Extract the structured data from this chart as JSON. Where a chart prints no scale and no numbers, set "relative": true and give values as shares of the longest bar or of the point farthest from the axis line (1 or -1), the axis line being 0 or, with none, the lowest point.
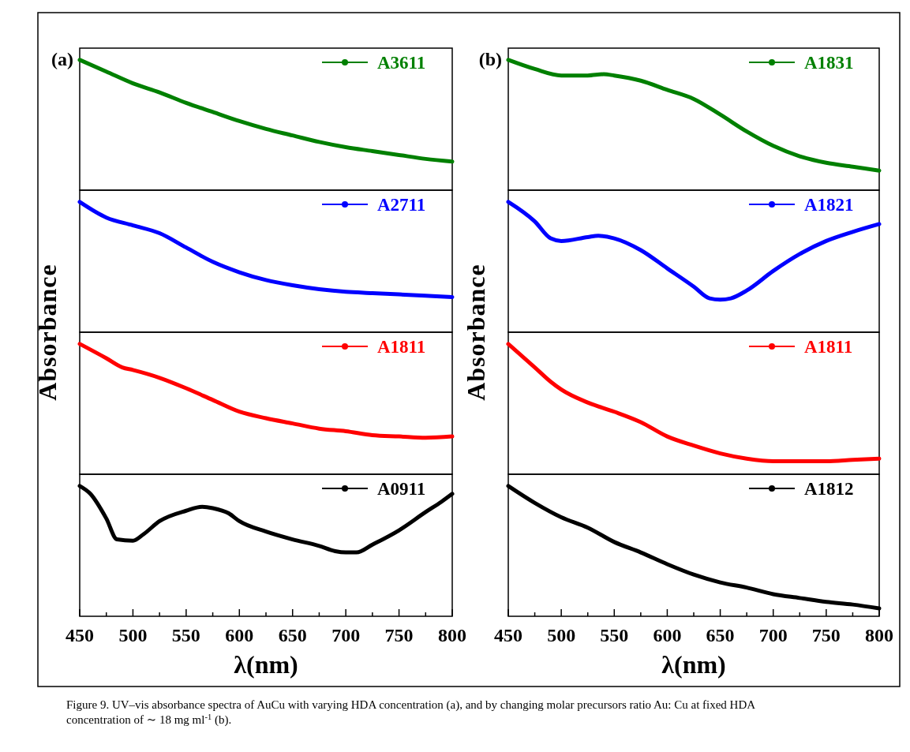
{
  "chart_data": [
    {
      "type": "line",
      "title": "(a)",
      "ylabel": "Absorbance",
      "relative": true,
      "xlim": [
        450,
        800
      ],
      "tick_labels": false,
      "legend": "top right",
      "series": [
        {
          "name": "A3611",
          "color": "#008000",
          "x": [
            450,
            475,
            500,
            525,
            550,
            575,
            600,
            625,
            650,
            675,
            700,
            725,
            750,
            775,
            800
          ],
          "values": [
            1,
            0.91,
            0.82,
            0.75,
            0.67,
            0.6,
            0.53,
            0.47,
            0.42,
            0.37,
            0.33,
            0.3,
            0.27,
            0.24,
            0.22
          ]
        }
      ]
    },
    {
      "type": "line",
      "relative": true,
      "xlim": [
        450,
        800
      ],
      "tick_labels": false,
      "legend": "top right",
      "series": [
        {
          "name": "A2711",
          "color": "#0000ff",
          "x": [
            450,
            475,
            500,
            525,
            550,
            575,
            600,
            625,
            650,
            675,
            700,
            725,
            750,
            775,
            800
          ],
          "values": [
            1,
            0.88,
            0.82,
            0.76,
            0.65,
            0.54,
            0.46,
            0.4,
            0.36,
            0.33,
            0.31,
            0.3,
            0.29,
            0.28,
            0.27
          ]
        }
      ]
    },
    {
      "type": "line",
      "relative": true,
      "xlim": [
        450,
        800
      ],
      "tick_labels": false,
      "legend": "top right",
      "series": [
        {
          "name": "A1811",
          "color": "#ff0000",
          "x": [
            450,
            475,
            490,
            500,
            525,
            550,
            575,
            600,
            625,
            650,
            675,
            700,
            725,
            750,
            775,
            800
          ],
          "values": [
            1,
            0.89,
            0.82,
            0.8,
            0.74,
            0.66,
            0.57,
            0.48,
            0.43,
            0.39,
            0.35,
            0.33,
            0.3,
            0.29,
            0.28,
            0.29
          ]
        }
      ]
    },
    {
      "type": "line",
      "xlabel": "λ(nm)",
      "relative": true,
      "xlim": [
        450,
        800
      ],
      "tick_labels": "x",
      "legend": "top right",
      "xticks": [
        450,
        {
          "value": 475,
          "label": null
        },
        500,
        {
          "value": 525,
          "label": null
        },
        550,
        {
          "value": 575,
          "label": null
        },
        600,
        {
          "value": 625,
          "label": null
        },
        650,
        {
          "value": 675,
          "label": null
        },
        700,
        {
          "value": 725,
          "label": null
        },
        750,
        {
          "value": 775,
          "label": null
        },
        800
      ],
      "series": [
        {
          "name": "A0911",
          "color": "#000000",
          "x": [
            450,
            460,
            475,
            485,
            500,
            510,
            525,
            550,
            565,
            575,
            590,
            600,
            625,
            650,
            675,
            690,
            700,
            710,
            725,
            750,
            775,
            790,
            800
          ],
          "values": [
            1,
            0.94,
            0.75,
            0.59,
            0.58,
            0.63,
            0.73,
            0.81,
            0.84,
            0.83,
            0.79,
            0.73,
            0.65,
            0.59,
            0.54,
            0.5,
            0.49,
            0.49,
            0.55,
            0.66,
            0.8,
            0.88,
            0.94
          ]
        }
      ]
    },
    {
      "type": "line",
      "title": "(b)",
      "ylabel": "Absorbance",
      "relative": true,
      "xlim": [
        450,
        800
      ],
      "tick_labels": false,
      "legend": "top right",
      "series": [
        {
          "name": "A1831",
          "color": "#008000",
          "x": [
            450,
            475,
            500,
            525,
            540,
            550,
            575,
            600,
            625,
            650,
            675,
            700,
            725,
            750,
            775,
            800
          ],
          "values": [
            1,
            0.93,
            0.88,
            0.88,
            0.89,
            0.88,
            0.84,
            0.77,
            0.7,
            0.58,
            0.45,
            0.34,
            0.26,
            0.21,
            0.18,
            0.15
          ]
        }
      ]
    },
    {
      "type": "line",
      "relative": true,
      "xlim": [
        450,
        800
      ],
      "tick_labels": false,
      "legend": "top right",
      "series": [
        {
          "name": "A1821",
          "color": "#0000ff",
          "x": [
            450,
            475,
            490,
            500,
            525,
            535,
            550,
            575,
            600,
            625,
            640,
            650,
            660,
            675,
            700,
            725,
            750,
            775,
            800
          ],
          "values": [
            1,
            0.85,
            0.72,
            0.7,
            0.73,
            0.74,
            0.72,
            0.63,
            0.49,
            0.35,
            0.26,
            0.25,
            0.26,
            0.32,
            0.47,
            0.6,
            0.7,
            0.77,
            0.83
          ]
        }
      ]
    },
    {
      "type": "line",
      "relative": true,
      "xlim": [
        450,
        800
      ],
      "tick_labels": false,
      "legend": "top right",
      "series": [
        {
          "name": "A1811",
          "color": "#ff0000",
          "x": [
            450,
            475,
            490,
            500,
            525,
            550,
            575,
            600,
            625,
            650,
            675,
            700,
            725,
            750,
            775,
            800
          ],
          "values": [
            1,
            0.82,
            0.71,
            0.65,
            0.55,
            0.48,
            0.4,
            0.29,
            0.22,
            0.16,
            0.12,
            0.1,
            0.1,
            0.1,
            0.11,
            0.12
          ]
        }
      ]
    },
    {
      "type": "line",
      "xlabel": "λ(nm)",
      "relative": true,
      "xlim": [
        450,
        800
      ],
      "tick_labels": "x",
      "legend": "top right",
      "xticks": [
        450,
        {
          "value": 475,
          "label": null
        },
        500,
        {
          "value": 525,
          "label": null
        },
        550,
        {
          "value": 575,
          "label": null
        },
        600,
        {
          "value": 625,
          "label": null
        },
        650,
        {
          "value": 675,
          "label": null
        },
        700,
        {
          "value": 725,
          "label": null
        },
        750,
        {
          "value": 775,
          "label": null
        },
        800
      ],
      "annotations": [
        "Figure 9. UV–vis absorbance spectra of AuCu with varying HDA concentration (a), and by changing molar precursors ratio Au: Cu at fixed HDA concentration of ∼ 18 mg ml$^{-1}$ (b)."
      ],
      "series": [
        {
          "name": "A1812",
          "color": "#000000",
          "x": [
            450,
            475,
            500,
            525,
            550,
            575,
            600,
            625,
            650,
            675,
            700,
            725,
            750,
            775,
            800
          ],
          "values": [
            1,
            0.87,
            0.76,
            0.68,
            0.57,
            0.49,
            0.4,
            0.32,
            0.26,
            0.22,
            0.17,
            0.14,
            0.11,
            0.09,
            0.06
          ]
        }
      ]
    }
  ]
}
